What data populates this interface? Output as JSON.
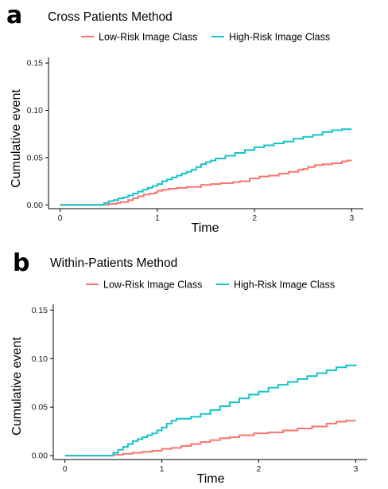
{
  "legend": {
    "low_label": "Low-Risk Image Class",
    "high_label": "High-Risk Image Class"
  },
  "colors": {
    "low": "#f8766d",
    "high": "#16c4c8"
  },
  "chart_data": [
    {
      "type": "line",
      "panel_label": "a",
      "title": "Cross Patients Method",
      "xlabel": "Time",
      "ylabel": "Cumulative event",
      "xlim": [
        -0.12,
        3.12
      ],
      "ylim": [
        -0.004,
        0.156
      ],
      "xticks": [
        0,
        1,
        2,
        3
      ],
      "xtick_labels": [
        "0",
        "1",
        "2",
        "3"
      ],
      "yticks": [
        0,
        0.05,
        0.1,
        0.15
      ],
      "ytick_labels": [
        "0.00",
        "0.05",
        "0.10",
        "0.15"
      ],
      "grid": false,
      "legend_position": "top",
      "series": [
        {
          "name": "Low-Risk Image Class",
          "color": "#f8766d",
          "x": [
            0,
            0.45,
            0.5,
            0.58,
            0.62,
            0.7,
            0.75,
            0.8,
            0.86,
            0.92,
            0.98,
            1.0,
            1.05,
            1.12,
            1.2,
            1.3,
            1.45,
            1.55,
            1.65,
            1.78,
            1.85,
            1.95,
            2.05,
            2.15,
            2.25,
            2.35,
            2.45,
            2.5,
            2.55,
            2.62,
            2.7,
            2.8,
            2.9,
            2.95,
            3.0
          ],
          "y": [
            0,
            0,
            0.001,
            0.002,
            0.003,
            0.005,
            0.007,
            0.009,
            0.011,
            0.012,
            0.013,
            0.015,
            0.016,
            0.017,
            0.018,
            0.019,
            0.021,
            0.022,
            0.023,
            0.024,
            0.025,
            0.028,
            0.03,
            0.031,
            0.033,
            0.035,
            0.037,
            0.038,
            0.04,
            0.042,
            0.043,
            0.044,
            0.046,
            0.047,
            0.047
          ]
        },
        {
          "name": "High-Risk Image Class",
          "color": "#16c4c8",
          "x": [
            0,
            0.42,
            0.45,
            0.5,
            0.55,
            0.6,
            0.65,
            0.7,
            0.75,
            0.8,
            0.85,
            0.9,
            0.95,
            1.0,
            1.05,
            1.1,
            1.15,
            1.2,
            1.25,
            1.3,
            1.35,
            1.4,
            1.45,
            1.5,
            1.55,
            1.6,
            1.7,
            1.8,
            1.9,
            2.0,
            2.1,
            2.2,
            2.3,
            2.4,
            2.5,
            2.6,
            2.7,
            2.8,
            2.9,
            3.0
          ],
          "y": [
            0,
            0,
            0.002,
            0.004,
            0.005,
            0.007,
            0.008,
            0.01,
            0.012,
            0.014,
            0.016,
            0.018,
            0.02,
            0.022,
            0.025,
            0.027,
            0.029,
            0.031,
            0.033,
            0.035,
            0.037,
            0.04,
            0.043,
            0.045,
            0.047,
            0.049,
            0.052,
            0.055,
            0.058,
            0.061,
            0.063,
            0.065,
            0.067,
            0.07,
            0.072,
            0.074,
            0.077,
            0.079,
            0.08,
            0.08
          ]
        }
      ]
    },
    {
      "type": "line",
      "panel_label": "b",
      "title": "Within-Patients Method",
      "xlabel": "Time",
      "ylabel": "Cumulative event",
      "xlim": [
        -0.12,
        3.12
      ],
      "ylim": [
        -0.004,
        0.156
      ],
      "xticks": [
        0,
        1,
        2,
        3
      ],
      "xtick_labels": [
        "0",
        "1",
        "2",
        "3"
      ],
      "yticks": [
        0,
        0.05,
        0.1,
        0.15
      ],
      "ytick_labels": [
        "0.00",
        "0.05",
        "0.10",
        "0.15"
      ],
      "grid": false,
      "legend_position": "top",
      "series": [
        {
          "name": "Low-Risk Image Class",
          "color": "#f8766d",
          "x": [
            0,
            0.45,
            0.5,
            0.6,
            0.7,
            0.8,
            0.9,
            1.0,
            1.1,
            1.2,
            1.3,
            1.4,
            1.5,
            1.6,
            1.7,
            1.8,
            1.95,
            2.1,
            2.25,
            2.4,
            2.55,
            2.7,
            2.8,
            2.9,
            3.0
          ],
          "y": [
            0,
            0,
            0.001,
            0.002,
            0.003,
            0.004,
            0.005,
            0.007,
            0.008,
            0.01,
            0.012,
            0.014,
            0.016,
            0.018,
            0.019,
            0.021,
            0.023,
            0.024,
            0.026,
            0.028,
            0.03,
            0.033,
            0.035,
            0.036,
            0.036
          ]
        },
        {
          "name": "High-Risk Image Class",
          "color": "#16c4c8",
          "x": [
            0,
            0.45,
            0.5,
            0.55,
            0.6,
            0.65,
            0.7,
            0.75,
            0.8,
            0.85,
            0.9,
            0.95,
            1.0,
            1.05,
            1.1,
            1.15,
            1.2,
            1.3,
            1.4,
            1.5,
            1.6,
            1.7,
            1.8,
            1.9,
            2.0,
            2.1,
            2.2,
            2.3,
            2.4,
            2.5,
            2.6,
            2.7,
            2.8,
            2.9,
            3.0
          ],
          "y": [
            0,
            0,
            0.003,
            0.006,
            0.009,
            0.012,
            0.015,
            0.017,
            0.019,
            0.021,
            0.023,
            0.026,
            0.029,
            0.033,
            0.036,
            0.038,
            0.038,
            0.04,
            0.043,
            0.047,
            0.051,
            0.055,
            0.059,
            0.063,
            0.066,
            0.07,
            0.073,
            0.076,
            0.079,
            0.082,
            0.085,
            0.088,
            0.091,
            0.093,
            0.094
          ]
        }
      ]
    }
  ]
}
